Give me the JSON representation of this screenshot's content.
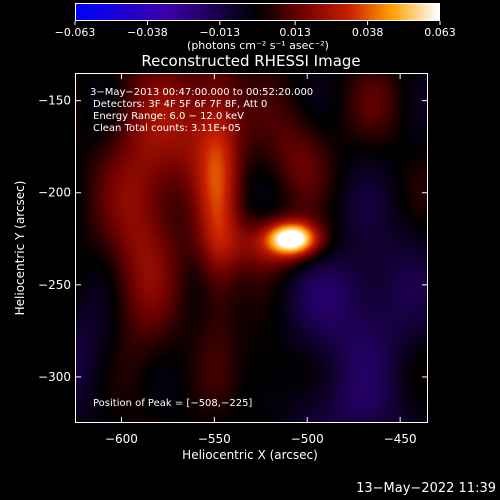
{
  "chart_data": {
    "type": "heatmap",
    "title": "Reconstructed RHESSI Image",
    "xlabel": "Heliocentric X (arcsec)",
    "ylabel": "Heliocentric Y (arcsec)",
    "xlim": [
      -625,
      -435
    ],
    "ylim": [
      -325,
      -135
    ],
    "x_ticks": [
      -600,
      -550,
      -500,
      -450
    ],
    "x_tick_labels": [
      "−600",
      "−550",
      "−500",
      "−450"
    ],
    "y_ticks": [
      -150,
      -200,
      -250,
      -300
    ],
    "y_tick_labels": [
      "−150",
      "−200",
      "−250",
      "−300"
    ],
    "colorbar": {
      "min": -0.063,
      "max": 0.063,
      "ticks": [
        -0.063,
        -0.038,
        -0.013,
        0.013,
        0.038,
        0.063
      ],
      "tick_labels": [
        "−0.063",
        "−0.038",
        "−0.013",
        "0.013",
        "0.038",
        "0.063"
      ],
      "unit_label": "(photons cm⁻² s⁻¹ asec⁻²)"
    },
    "peak": {
      "x": -508,
      "y": -225
    },
    "annotations": [
      "3−May−2013 00:47:00.000 to 00:52:20.000",
      "Detectors: 3F 4F 5F 6F 7F 8F, Att 0",
      "Energy Range: 6.0 − 12.0 keV",
      "Clean    Total counts: 3.11E+05"
    ],
    "peak_label": "Position of Peak = [−508,−225]"
  },
  "footer": {
    "timestamp": "13−May−2022 11:39"
  }
}
